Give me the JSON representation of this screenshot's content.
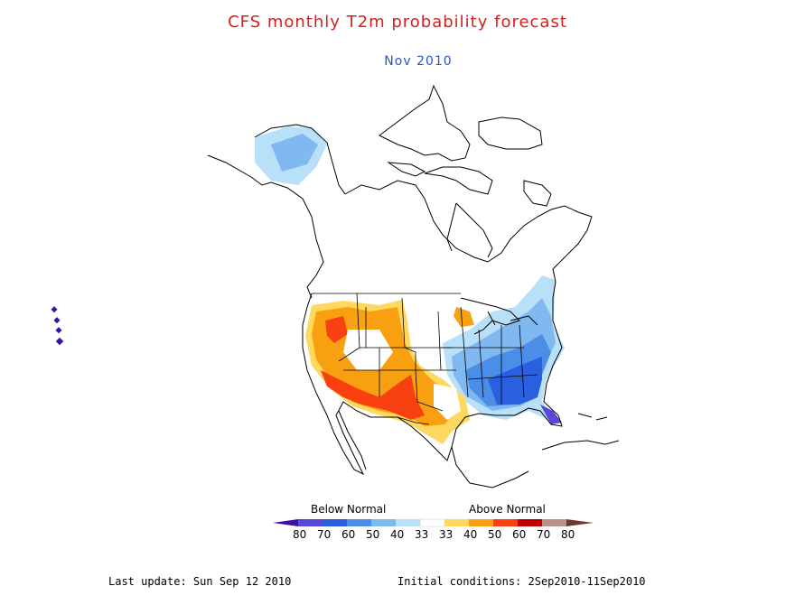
{
  "title": "CFS monthly T2m probability forecast",
  "subtitle": "Nov 2010",
  "colors": {
    "title": "#d42020",
    "subtitle": "#2a52d0",
    "outline": "#000000",
    "below_80": "#3a10a8",
    "below_70": "#5848d8",
    "below_60": "#2a60e0",
    "below_50": "#4a8ee8",
    "below_40": "#80b8f0",
    "below_33": "#b8e0f8",
    "neutral": "#ffffff",
    "above_40": "#ffd860",
    "above_50": "#f8a010",
    "above_60": "#f84010",
    "above_70": "#c00000",
    "above_80": "#b89088",
    "above_90": "#6a3a2a"
  },
  "legend": {
    "below_label": "Below Normal",
    "above_label": "Above Normal",
    "ticks": [
      "80",
      "70",
      "60",
      "50",
      "40",
      "33",
      "33",
      "40",
      "50",
      "60",
      "70",
      "80"
    ]
  },
  "footer": {
    "last_update": "Last update: Sun Sep 12 2010",
    "initial_conditions": "Initial conditions: 2Sep2010-11Sep2010"
  }
}
